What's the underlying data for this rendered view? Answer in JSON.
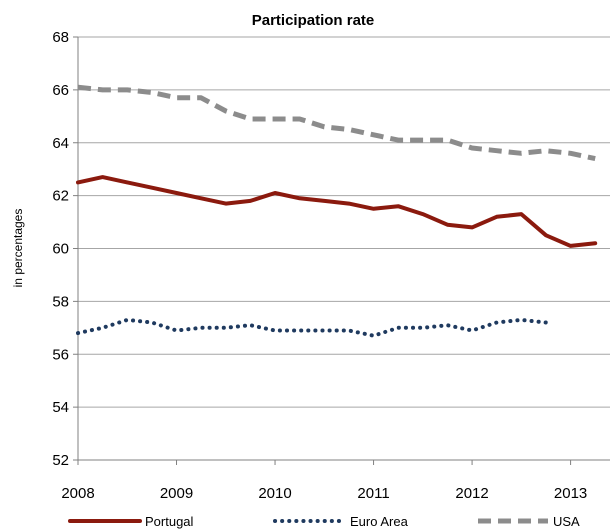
{
  "chart_data": {
    "type": "line",
    "title": "Participation rate",
    "ylabel": "in percentages",
    "xlabel": "",
    "ylim": [
      52,
      68
    ],
    "yticks": [
      52,
      54,
      56,
      58,
      60,
      62,
      64,
      66,
      68
    ],
    "xlim": [
      2008,
      2013.4
    ],
    "xticks": [
      2008,
      2009,
      2010,
      2011,
      2012,
      2013
    ],
    "grid": "horizontal",
    "legend": "bottom",
    "series": [
      {
        "name": "Portugal",
        "color": "#8B1A0E",
        "style": "solid",
        "x": [
          2008.0,
          2008.25,
          2008.5,
          2008.75,
          2009.0,
          2009.25,
          2009.5,
          2009.75,
          2010.0,
          2010.25,
          2010.5,
          2010.75,
          2011.0,
          2011.25,
          2011.5,
          2011.75,
          2012.0,
          2012.25,
          2012.5,
          2012.75,
          2013.0,
          2013.25
        ],
        "values": [
          62.5,
          62.7,
          62.5,
          62.3,
          62.1,
          61.9,
          61.7,
          61.8,
          62.1,
          61.9,
          61.8,
          61.7,
          61.5,
          61.6,
          61.3,
          60.9,
          60.8,
          61.2,
          61.3,
          60.5,
          60.1,
          60.2
        ]
      },
      {
        "name": "Euro Area",
        "color": "#1F3A5F",
        "style": "dotted",
        "x": [
          2008.0,
          2008.25,
          2008.5,
          2008.75,
          2009.0,
          2009.25,
          2009.5,
          2009.75,
          2010.0,
          2010.25,
          2010.5,
          2010.75,
          2011.0,
          2011.25,
          2011.5,
          2011.75,
          2012.0,
          2012.25,
          2012.5,
          2012.75
        ],
        "values": [
          56.8,
          57.0,
          57.3,
          57.2,
          56.9,
          57.0,
          57.0,
          57.1,
          56.9,
          56.9,
          56.9,
          56.9,
          56.7,
          57.0,
          57.0,
          57.1,
          56.9,
          57.2,
          57.3,
          57.2
        ]
      },
      {
        "name": "USA",
        "color": "#8C8C8C",
        "style": "dashed",
        "x": [
          2008.0,
          2008.25,
          2008.5,
          2008.75,
          2009.0,
          2009.25,
          2009.5,
          2009.75,
          2010.0,
          2010.25,
          2010.5,
          2010.75,
          2011.0,
          2011.25,
          2011.5,
          2011.75,
          2012.0,
          2012.25,
          2012.5,
          2012.75,
          2013.0,
          2013.25
        ],
        "values": [
          66.1,
          66.0,
          66.0,
          65.9,
          65.7,
          65.7,
          65.2,
          64.9,
          64.9,
          64.9,
          64.6,
          64.5,
          64.3,
          64.1,
          64.1,
          64.1,
          63.8,
          63.7,
          63.6,
          63.7,
          63.6,
          63.4
        ]
      }
    ]
  }
}
